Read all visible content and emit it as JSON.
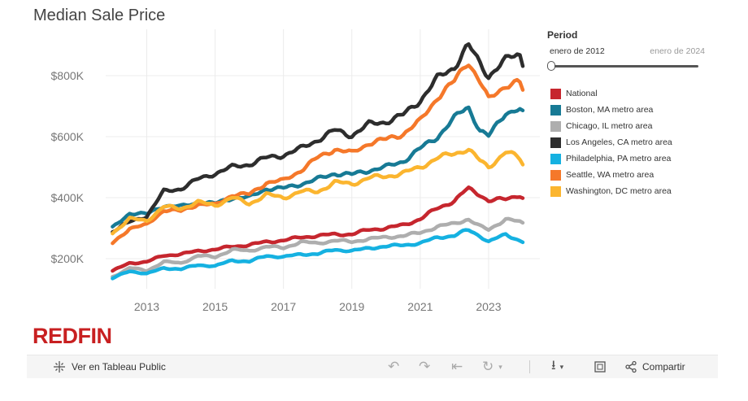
{
  "title": "Median Sale Price",
  "period": {
    "label": "Period",
    "start_label": "enero de 2012",
    "end_label": "enero de 2024",
    "selected_fraction": 0
  },
  "logo_text": "REDFIN",
  "toolbar": {
    "view_label": "Ver en Tableau Public",
    "share_label": "Compartir"
  },
  "colors": {
    "National": "#c6262e",
    "Boston": "#177a95",
    "Chicago": "#aeaeae",
    "LosAngeles": "#2d2d2d",
    "Philadelphia": "#15b1e1",
    "Seattle": "#f5782a",
    "Washington": "#fbb52f"
  },
  "chart_data": {
    "type": "line",
    "title": "Median Sale Price",
    "xlabel": "",
    "ylabel": "",
    "x_ticks": [
      "2013",
      "2015",
      "2017",
      "2019",
      "2021",
      "2023"
    ],
    "y_ticks": [
      "$200K",
      "$400K",
      "$600K",
      "$800K"
    ],
    "y_tick_values": [
      200,
      400,
      600,
      800
    ],
    "ylim": [
      120,
      880
    ],
    "xlim": [
      2011.8,
      2024.5
    ],
    "grid": true,
    "legend_position": "right",
    "units": "thousands USD",
    "x_anchors": [
      2012.0,
      2012.5,
      2013.0,
      2013.5,
      2014.0,
      2014.5,
      2015.0,
      2015.5,
      2016.0,
      2016.5,
      2017.0,
      2017.5,
      2018.0,
      2018.5,
      2019.0,
      2019.5,
      2020.0,
      2020.5,
      2021.0,
      2021.5,
      2022.0,
      2022.4,
      2022.75,
      2023.0,
      2023.5,
      2023.9,
      2024.0
    ],
    "series": [
      {
        "name": "National",
        "color_key": "National",
        "values": [
          160,
          185,
          190,
          210,
          215,
          225,
          230,
          240,
          245,
          255,
          260,
          270,
          275,
          280,
          280,
          295,
          300,
          310,
          330,
          365,
          390,
          430,
          410,
          390,
          395,
          410,
          400
        ]
      },
      {
        "name": "Boston, MA metro area",
        "color_key": "Boston",
        "values": [
          300,
          350,
          345,
          375,
          370,
          385,
          380,
          400,
          400,
          430,
          430,
          445,
          460,
          480,
          475,
          490,
          500,
          520,
          560,
          600,
          660,
          700,
          620,
          600,
          680,
          690,
          675
        ]
      },
      {
        "name": "Chicago, IL metro area",
        "color_key": "Chicago",
        "values": [
          140,
          170,
          160,
          190,
          185,
          210,
          205,
          230,
          225,
          240,
          235,
          255,
          250,
          260,
          255,
          265,
          270,
          275,
          285,
          305,
          315,
          330,
          305,
          295,
          330,
          320,
          315
        ]
      },
      {
        "name": "Los Angeles, CA metro area",
        "color_key": "LosAngeles",
        "values": [
          290,
          320,
          340,
          420,
          430,
          460,
          480,
          500,
          510,
          530,
          540,
          560,
          590,
          620,
          605,
          640,
          650,
          670,
          720,
          790,
          830,
          900,
          840,
          800,
          850,
          875,
          840
        ]
      },
      {
        "name": "Philadelphia, PA metro area",
        "color_key": "Philadelphia",
        "values": [
          135,
          160,
          150,
          170,
          165,
          180,
          175,
          195,
          190,
          210,
          205,
          215,
          215,
          230,
          225,
          235,
          240,
          245,
          250,
          270,
          275,
          295,
          275,
          255,
          280,
          260,
          255
        ]
      },
      {
        "name": "Seattle, WA metro area",
        "color_key": "Seattle",
        "values": [
          250,
          300,
          310,
          360,
          355,
          380,
          375,
          410,
          410,
          450,
          455,
          490,
          530,
          560,
          545,
          580,
          590,
          610,
          650,
          730,
          780,
          850,
          780,
          720,
          770,
          780,
          750
        ]
      },
      {
        "name": "Washington, DC metro area",
        "color_key": "Washington",
        "values": [
          285,
          330,
          325,
          370,
          365,
          385,
          375,
          400,
          380,
          410,
          400,
          420,
          420,
          450,
          445,
          465,
          470,
          480,
          500,
          530,
          545,
          560,
          520,
          500,
          550,
          530,
          510
        ]
      }
    ]
  }
}
